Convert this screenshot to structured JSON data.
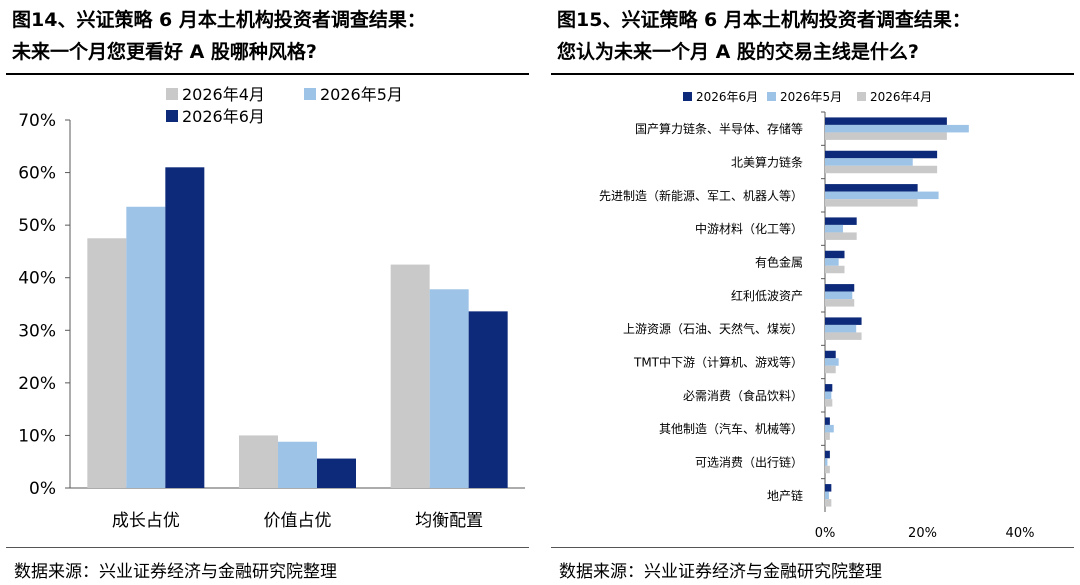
{
  "colors": {
    "apr": "#c9c9c9",
    "may": "#9dc3e6",
    "jun": "#0d2a7a"
  },
  "left": {
    "title_line1": "图14、兴证策略 6 月本土机构投资者调查结果：",
    "title_line2": "未来一个月您更看好 A 股哪种风格?",
    "source": "数据来源：兴业证券经济与金融研究院整理",
    "chart_data": {
      "type": "bar",
      "title": "",
      "xlabel": "",
      "ylabel": "",
      "categories": [
        "成长占优",
        "价值占优",
        "均衡配置"
      ],
      "series": [
        {
          "name": "2026年4月",
          "values": [
            47.5,
            10.0,
            42.5
          ]
        },
        {
          "name": "2026年5月",
          "values": [
            53.5,
            8.8,
            37.8
          ]
        },
        {
          "name": "2026年6月",
          "values": [
            61.0,
            5.6,
            33.6
          ]
        }
      ],
      "ylim": [
        0,
        70
      ],
      "yticks": [
        "0%",
        "10%",
        "20%",
        "30%",
        "40%",
        "50%",
        "60%",
        "70%"
      ],
      "grid": false,
      "legend": "top"
    }
  },
  "right": {
    "title_line1": "图15、兴证策略 6 月本土机构投资者调查结果：",
    "title_line2": "您认为未来一个月 A 股的交易主线是什么?",
    "source": "数据来源：兴业证券经济与金融研究院整理",
    "chart_data": {
      "type": "bar",
      "orientation": "horizontal",
      "title": "",
      "xlabel": "",
      "ylabel": "",
      "categories": [
        "国产算力链条、半导体、存储等",
        "北美算力链条",
        "先进制造（新能源、军工、机器人等）",
        "中游材料（化工等）",
        "有色金属",
        "红利低波资产",
        "上游资源（石油、天然气、煤炭）",
        "TMT中下游（计算机、游戏等）",
        "必需消费（食品饮料）",
        "其他制造（汽车、机械等）",
        "可选消费（出行链）",
        "地产链"
      ],
      "series": [
        {
          "name": "2026年6月",
          "values": [
            25.0,
            23.0,
            19.0,
            6.5,
            4.0,
            6.0,
            7.5,
            2.2,
            1.5,
            1.0,
            1.0,
            1.3
          ]
        },
        {
          "name": "2026年5月",
          "values": [
            29.5,
            18.0,
            23.3,
            3.7,
            2.8,
            5.6,
            6.4,
            2.8,
            1.3,
            1.8,
            0.5,
            0.8
          ]
        },
        {
          "name": "2026年4月",
          "values": [
            25.0,
            23.0,
            19.0,
            6.5,
            4.0,
            6.0,
            7.5,
            2.2,
            1.5,
            1.0,
            1.0,
            1.3
          ]
        }
      ],
      "xlim": [
        0,
        40
      ],
      "xticks": [
        "0%",
        "20%",
        "40%"
      ],
      "grid": false,
      "legend": "top"
    }
  }
}
